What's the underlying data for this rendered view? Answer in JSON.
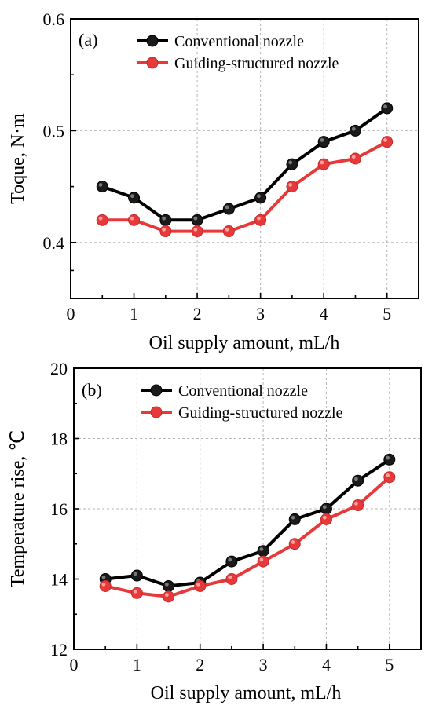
{
  "chart_data": [
    {
      "type": "line",
      "panel_label": "(a)",
      "xlabel": "Oil supply amount, mL/h",
      "ylabel": "Toque, N·m",
      "xlim": [
        0,
        5.5
      ],
      "ylim": [
        0.35,
        0.6
      ],
      "xticks": [
        0,
        1,
        2,
        3,
        4,
        5
      ],
      "yticks": [
        0.4,
        0.5,
        0.6
      ],
      "xtick_labels": [
        "0",
        "1",
        "2",
        "3",
        "4",
        "5"
      ],
      "ytick_labels": [
        "0.4",
        "0.5",
        "0.6"
      ],
      "grid": true,
      "legend_position": "top-left",
      "x": [
        0.5,
        1,
        1.5,
        2,
        2.5,
        3,
        3.5,
        4,
        4.5,
        5
      ],
      "series": [
        {
          "name": "Conventional nozzle",
          "color": "#000000",
          "values": [
            0.45,
            0.44,
            0.42,
            0.42,
            0.43,
            0.44,
            0.47,
            0.49,
            0.5,
            0.52
          ]
        },
        {
          "name": "Guiding-structured nozzle",
          "color": "#e8393a",
          "values": [
            0.42,
            0.42,
            0.41,
            0.41,
            0.41,
            0.42,
            0.45,
            0.47,
            0.475,
            0.49
          ]
        }
      ]
    },
    {
      "type": "line",
      "panel_label": "(b)",
      "xlabel": "Oil supply amount, mL/h",
      "ylabel": "Temperature rise,  ℃",
      "xlim": [
        0,
        5.5
      ],
      "ylim": [
        12,
        20
      ],
      "xticks": [
        0,
        1,
        2,
        3,
        4,
        5
      ],
      "yticks": [
        12,
        14,
        16,
        18,
        20
      ],
      "xtick_labels": [
        "0",
        "1",
        "2",
        "3",
        "4",
        "5"
      ],
      "ytick_labels": [
        "12",
        "14",
        "16",
        "18",
        "20"
      ],
      "grid": true,
      "legend_position": "top-left",
      "x": [
        0.5,
        1,
        1.5,
        2,
        2.5,
        3,
        3.5,
        4,
        4.5,
        5
      ],
      "series": [
        {
          "name": "Conventional nozzle",
          "color": "#000000",
          "values": [
            14.0,
            14.1,
            13.8,
            13.9,
            14.5,
            14.8,
            15.7,
            16.0,
            16.8,
            17.4
          ]
        },
        {
          "name": "Guiding-structured nozzle",
          "color": "#e8393a",
          "values": [
            13.8,
            13.6,
            13.5,
            13.8,
            14.0,
            14.5,
            15.0,
            15.7,
            16.1,
            16.9
          ]
        }
      ]
    }
  ]
}
